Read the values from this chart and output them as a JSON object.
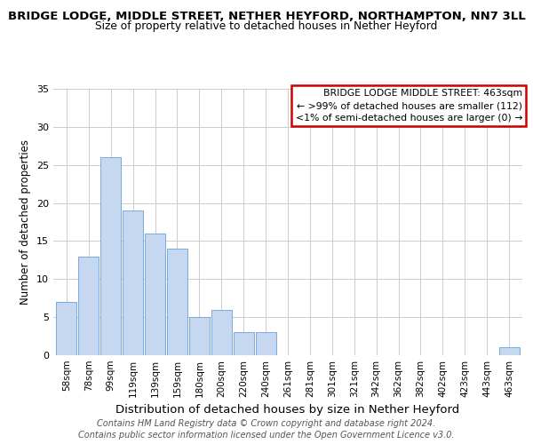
{
  "title": "BRIDGE LODGE, MIDDLE STREET, NETHER HEYFORD, NORTHAMPTON, NN7 3LL",
  "subtitle": "Size of property relative to detached houses in Nether Heyford",
  "xlabel": "Distribution of detached houses by size in Nether Heyford",
  "ylabel": "Number of detached properties",
  "bar_labels": [
    "58sqm",
    "78sqm",
    "99sqm",
    "119sqm",
    "139sqm",
    "159sqm",
    "180sqm",
    "200sqm",
    "220sqm",
    "240sqm",
    "261sqm",
    "281sqm",
    "301sqm",
    "321sqm",
    "342sqm",
    "362sqm",
    "382sqm",
    "402sqm",
    "423sqm",
    "443sqm",
    "463sqm"
  ],
  "bar_values": [
    7,
    13,
    26,
    19,
    16,
    14,
    5,
    6,
    3,
    3,
    0,
    0,
    0,
    0,
    0,
    0,
    0,
    0,
    0,
    0,
    1
  ],
  "bar_color": "#c5d8f0",
  "bar_edgecolor": "#6a9fd8",
  "ylim": [
    0,
    35
  ],
  "yticks": [
    0,
    5,
    10,
    15,
    20,
    25,
    30,
    35
  ],
  "annotation_box_title": "BRIDGE LODGE MIDDLE STREET: 463sqm",
  "annotation_line1": "← >99% of detached houses are smaller (112)",
  "annotation_line2": "<1% of semi-detached houses are larger (0) →",
  "annotation_box_edgecolor": "#cc0000",
  "footer_line1": "Contains HM Land Registry data © Crown copyright and database right 2024.",
  "footer_line2": "Contains public sector information licensed under the Open Government Licence v3.0.",
  "background_color": "#ffffff",
  "grid_color": "#cccccc",
  "title_fontsize": 9.5,
  "subtitle_fontsize": 8.8,
  "ylabel_fontsize": 8.5,
  "xlabel_fontsize": 9.5,
  "tick_fontsize": 7.5,
  "footer_fontsize": 7.0
}
